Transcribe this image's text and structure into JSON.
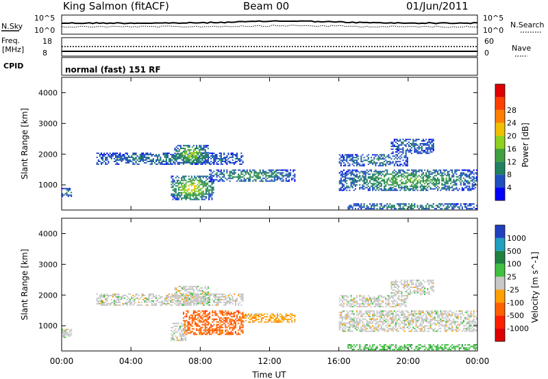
{
  "header": {
    "station_title": "King Salmon (fitACF)",
    "beam_title": "Beam 00",
    "date_title": "01/Jun/2011"
  },
  "status_panel": {
    "nsky_label": "N.Sky",
    "nsky_ticks": [
      "10^5",
      "10^0"
    ],
    "nsearch_label": "N.Search",
    "nsearch_ticks": [
      "10^5",
      "10^0"
    ],
    "freq_label_line1": "Freq.",
    "freq_label_line2": "[MHz]",
    "freq_ticks": [
      "18",
      "8"
    ],
    "nave_label": "Nave",
    "nave_ticks": [
      "60",
      "0"
    ],
    "cpid_label": "CPID",
    "cpid_value": "normal (fast) 151 RF"
  },
  "chart_data": [
    {
      "type": "heatmap",
      "name": "power",
      "ylabel": "Slant Range [km]",
      "ylim": [
        180,
        4500
      ],
      "yticks": [
        "1000",
        "2000",
        "3000",
        "4000"
      ],
      "colorbar_label": "Power [dB]",
      "colorbar_ticks": [
        "4",
        "8",
        "12",
        "16",
        "20",
        "24",
        "28"
      ],
      "colorbar_colors": [
        "#0000ff",
        "#2050c0",
        "#208060",
        "#40a040",
        "#90d020",
        "#f0c000",
        "#ff8000",
        "#ff4000",
        "#e00000"
      ],
      "echo_regions": [
        {
          "t0": 2.0,
          "t1": 10.5,
          "r0": 1650,
          "r1": 2050,
          "level": 5
        },
        {
          "t0": 6.5,
          "t1": 8.5,
          "r0": 1700,
          "r1": 2300,
          "level": 14
        },
        {
          "t0": 6.3,
          "t1": 8.8,
          "r0": 500,
          "r1": 1300,
          "level": 16
        },
        {
          "t0": 8.5,
          "t1": 13.5,
          "r0": 1100,
          "r1": 1500,
          "level": 8
        },
        {
          "t0": 0.0,
          "t1": 0.6,
          "r0": 600,
          "r1": 900,
          "level": 6
        },
        {
          "t0": 16.0,
          "t1": 24.0,
          "r0": 800,
          "r1": 1500,
          "level": 10
        },
        {
          "t0": 16.0,
          "t1": 20.0,
          "r0": 1600,
          "r1": 2000,
          "level": 5
        },
        {
          "t0": 19.0,
          "t1": 21.5,
          "r0": 2000,
          "r1": 2500,
          "level": 4
        },
        {
          "t0": 16.5,
          "t1": 24.0,
          "r0": 200,
          "r1": 400,
          "level": 6
        }
      ]
    },
    {
      "type": "heatmap",
      "name": "velocity",
      "ylabel": "Slant Range [km]",
      "ylim": [
        180,
        4500
      ],
      "yticks": [
        "1000",
        "2000",
        "3000",
        "4000"
      ],
      "colorbar_label": "Velocity [m s^-1]",
      "colorbar_ticks": [
        "1000",
        "500",
        "100",
        "25",
        "-25",
        "-100",
        "-500",
        "-1000"
      ],
      "colorbar_colors": [
        "#2040c0",
        "#20a0c0",
        "#208040",
        "#40c040",
        "#c8c8c8",
        "#ffa000",
        "#ff6000",
        "#ff2000",
        "#e00000"
      ],
      "echo_regions": [
        {
          "t0": 2.0,
          "t1": 10.5,
          "r0": 1650,
          "r1": 2050,
          "level": 4
        },
        {
          "t0": 6.5,
          "t1": 8.5,
          "r0": 1700,
          "r1": 2300,
          "level": 4
        },
        {
          "t0": 7.0,
          "t1": 10.5,
          "r0": 700,
          "r1": 1500,
          "level": 6
        },
        {
          "t0": 6.3,
          "t1": 7.2,
          "r0": 500,
          "r1": 1100,
          "level": 4
        },
        {
          "t0": 10.5,
          "t1": 13.5,
          "r0": 1100,
          "r1": 1400,
          "level": 5
        },
        {
          "t0": 0.0,
          "t1": 0.6,
          "r0": 600,
          "r1": 900,
          "level": 4
        },
        {
          "t0": 16.0,
          "t1": 24.0,
          "r0": 800,
          "r1": 1500,
          "level": 4
        },
        {
          "t0": 16.0,
          "t1": 20.0,
          "r0": 1600,
          "r1": 2000,
          "level": 4
        },
        {
          "t0": 19.0,
          "t1": 21.5,
          "r0": 2000,
          "r1": 2500,
          "level": 4
        },
        {
          "t0": 16.5,
          "t1": 24.0,
          "r0": 200,
          "r1": 400,
          "level": 3
        }
      ]
    }
  ],
  "x_axis": {
    "xlim": [
      0,
      24
    ],
    "tick_labels": [
      "00:00",
      "04:00",
      "08:00",
      "12:00",
      "16:00",
      "20:00",
      "00:00"
    ],
    "xlabel": "Time UT"
  }
}
